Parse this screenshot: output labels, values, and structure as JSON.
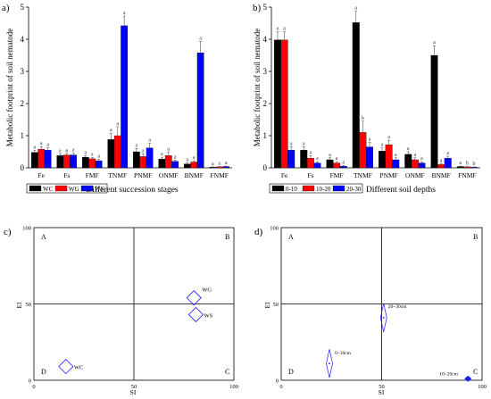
{
  "panels": {
    "a": {
      "label": "a)",
      "chart_data": {
        "type": "bar",
        "ylabel": "Metabolic footprint of soil nematode",
        "xlabel": "Different succession stages",
        "ylim": [
          0,
          5
        ],
        "yticks": [
          0,
          1,
          2,
          3,
          4,
          5
        ],
        "categories": [
          "Fe",
          "Fs",
          "FMF",
          "TNMF",
          "PNMF",
          "ONMF",
          "BNMF",
          "FNMF"
        ],
        "series": [
          {
            "name": "WC",
            "color": "#000000",
            "values": [
              0.48,
              0.38,
              0.33,
              0.88,
              0.5,
              0.27,
              0.12,
              0.02
            ]
          },
          {
            "name": "WG",
            "color": "#ff0000",
            "values": [
              0.58,
              0.4,
              0.28,
              1.0,
              0.35,
              0.38,
              0.18,
              0.03
            ]
          },
          {
            "name": "WS",
            "color": "#0000ff",
            "values": [
              0.55,
              0.4,
              0.22,
              4.42,
              0.62,
              0.2,
              3.58,
              0.04
            ]
          }
        ],
        "errors": [
          [
            0.06,
            0.05,
            0.05,
            0.2,
            0.1,
            0.06,
            0.03,
            0.01
          ],
          [
            0.08,
            0.05,
            0.04,
            0.28,
            0.08,
            0.1,
            0.04,
            0.01
          ],
          [
            0.07,
            0.06,
            0.04,
            0.3,
            0.14,
            0.04,
            0.35,
            0.01
          ]
        ],
        "letters": [
          [
            "a",
            "a",
            "a",
            "a",
            "a",
            "a",
            "a",
            "a"
          ],
          [
            "a",
            "a",
            "a",
            "a",
            "a",
            "a",
            "a",
            "a"
          ],
          [
            "a",
            "a",
            "a",
            "a",
            "a",
            "a",
            "a",
            "a"
          ]
        ],
        "legend_position": "bottom"
      }
    },
    "b": {
      "label": "b)",
      "chart_data": {
        "type": "bar",
        "ylabel": "Metabolic footprint of soil nematode",
        "xlabel": "Different soil depths",
        "ylim": [
          0,
          5
        ],
        "yticks": [
          0,
          1,
          2,
          3,
          4,
          5
        ],
        "categories": [
          "Fe",
          "Fs",
          "FMF",
          "TNMF",
          "PNMF",
          "ONMF",
          "BNMF",
          "FNMF"
        ],
        "series": [
          {
            "name": "0-10",
            "color": "#000000",
            "values": [
              3.98,
              0.55,
              0.25,
              4.52,
              0.52,
              0.42,
              3.5,
              0.04
            ]
          },
          {
            "name": "10-20",
            "color": "#ff0000",
            "values": [
              3.98,
              0.3,
              0.15,
              1.1,
              0.72,
              0.25,
              0.1,
              0.03
            ]
          },
          {
            "name": "20-30",
            "color": "#0000ff",
            "values": [
              0.55,
              0.15,
              0.05,
              0.65,
              0.25,
              0.15,
              0.3,
              0.02
            ]
          }
        ],
        "errors": [
          [
            0.25,
            0.1,
            0.06,
            0.35,
            0.1,
            0.08,
            0.3,
            0.01
          ],
          [
            0.25,
            0.08,
            0.04,
            0.35,
            0.14,
            0.06,
            0.03,
            0.01
          ],
          [
            0.1,
            0.04,
            0.02,
            0.14,
            0.06,
            0.04,
            0.06,
            0.01
          ]
        ],
        "letters": [
          [
            "a",
            "a",
            "a",
            "a",
            "a",
            "a",
            "a",
            "a"
          ],
          [
            "a",
            "a",
            "a",
            "b",
            "a",
            "a",
            "a",
            "b"
          ],
          [
            "a",
            "a",
            "a",
            "a",
            "a",
            "a",
            "a",
            "b"
          ]
        ],
        "legend_position": "bottom"
      }
    },
    "c": {
      "label": "c)",
      "chart_data": {
        "type": "scatter",
        "xlabel": "SI",
        "ylabel": "EI",
        "xlim": [
          0,
          100
        ],
        "ylim": [
          0,
          100
        ],
        "xticks": [
          0,
          50,
          100
        ],
        "yticks": [
          0,
          50,
          100
        ],
        "quadrants": [
          "A",
          "B",
          "C",
          "D"
        ],
        "points": [
          {
            "name": "WG",
            "x": 80,
            "y": 54
          },
          {
            "name": "WS",
            "x": 81,
            "y": 43
          },
          {
            "name": "WC",
            "x": 16,
            "y": 9
          }
        ]
      }
    },
    "d": {
      "label": "d)",
      "chart_data": {
        "type": "scatter",
        "xlabel": "SI",
        "ylabel": "EI",
        "xlim": [
          0,
          100
        ],
        "ylim": [
          0,
          100
        ],
        "xticks": [
          0,
          50,
          100
        ],
        "yticks": [
          0,
          50,
          100
        ],
        "quadrants": [
          "A",
          "B",
          "C",
          "D"
        ],
        "points": [
          {
            "name": "0~10cm",
            "x": 24,
            "y": 11
          },
          {
            "name": "20~30cm",
            "x": 51,
            "y": 41
          },
          {
            "name": "10~20cm",
            "x": 93,
            "y": 1
          }
        ]
      }
    }
  }
}
